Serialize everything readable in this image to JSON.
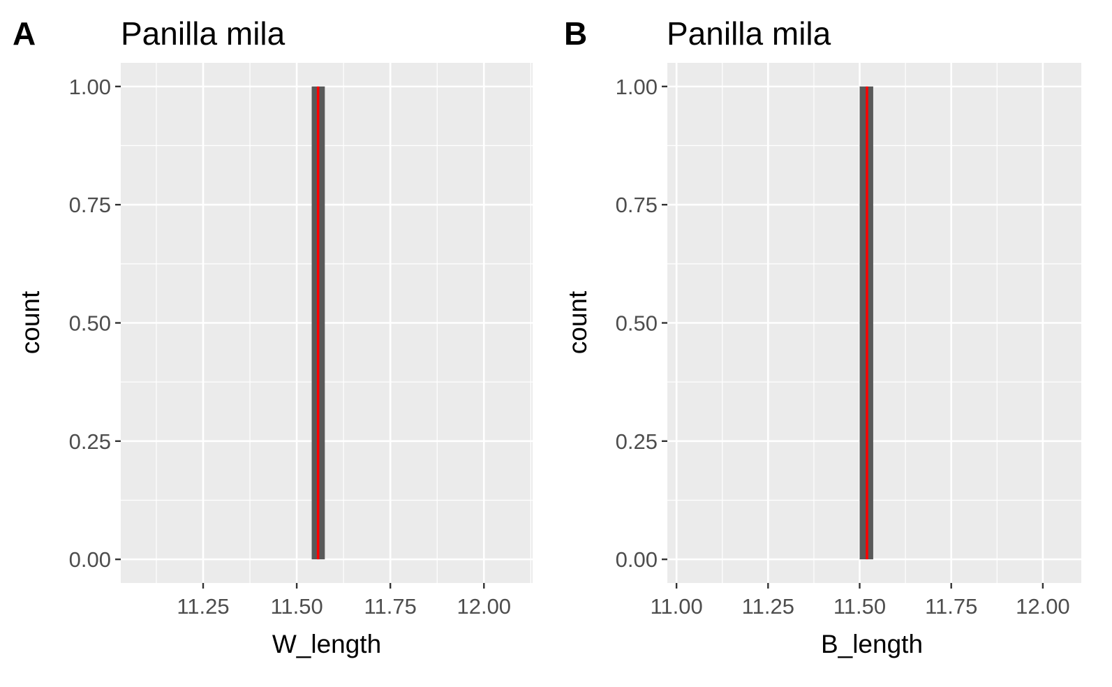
{
  "chart_data": [
    {
      "type": "histogram",
      "panel_tag": "A",
      "title": "Panilla mila",
      "xlabel": "W_length",
      "ylabel": "count",
      "xlim": [
        11.03,
        12.13
      ],
      "ylim": [
        -0.05,
        1.05
      ],
      "x_ticks": [
        11.25,
        11.5,
        11.75,
        12.0
      ],
      "x_tick_labels": [
        "11.25",
        "11.50",
        "11.75",
        "12.00"
      ],
      "y_ticks": [
        0,
        0.25,
        0.5,
        0.75,
        1.0
      ],
      "y_tick_labels": [
        "0.00",
        "0.25",
        "0.50",
        "0.75",
        "1.00"
      ],
      "bins": [
        {
          "x_start": 11.54,
          "x_end": 11.575,
          "count": 1
        }
      ],
      "reference_line": {
        "x": 11.557,
        "color": "#ff0000"
      },
      "bar_color": "#595959",
      "panel_background": "#ebebeb",
      "grid": true
    },
    {
      "type": "histogram",
      "panel_tag": "B",
      "title": "Panilla mila",
      "xlabel": "B_length",
      "ylabel": "count",
      "xlim": [
        10.975,
        12.105
      ],
      "ylim": [
        -0.05,
        1.05
      ],
      "x_ticks": [
        11.0,
        11.25,
        11.5,
        11.75,
        12.0
      ],
      "x_tick_labels": [
        "11.00",
        "11.25",
        "11.50",
        "11.75",
        "12.00"
      ],
      "y_ticks": [
        0,
        0.25,
        0.5,
        0.75,
        1.0
      ],
      "y_tick_labels": [
        "0.00",
        "0.25",
        "0.50",
        "0.75",
        "1.00"
      ],
      "bins": [
        {
          "x_start": 11.5,
          "x_end": 11.537,
          "count": 1
        }
      ],
      "reference_line": {
        "x": 11.52,
        "color": "#ff0000"
      },
      "bar_color": "#595959",
      "panel_background": "#ebebeb",
      "grid": true
    }
  ]
}
